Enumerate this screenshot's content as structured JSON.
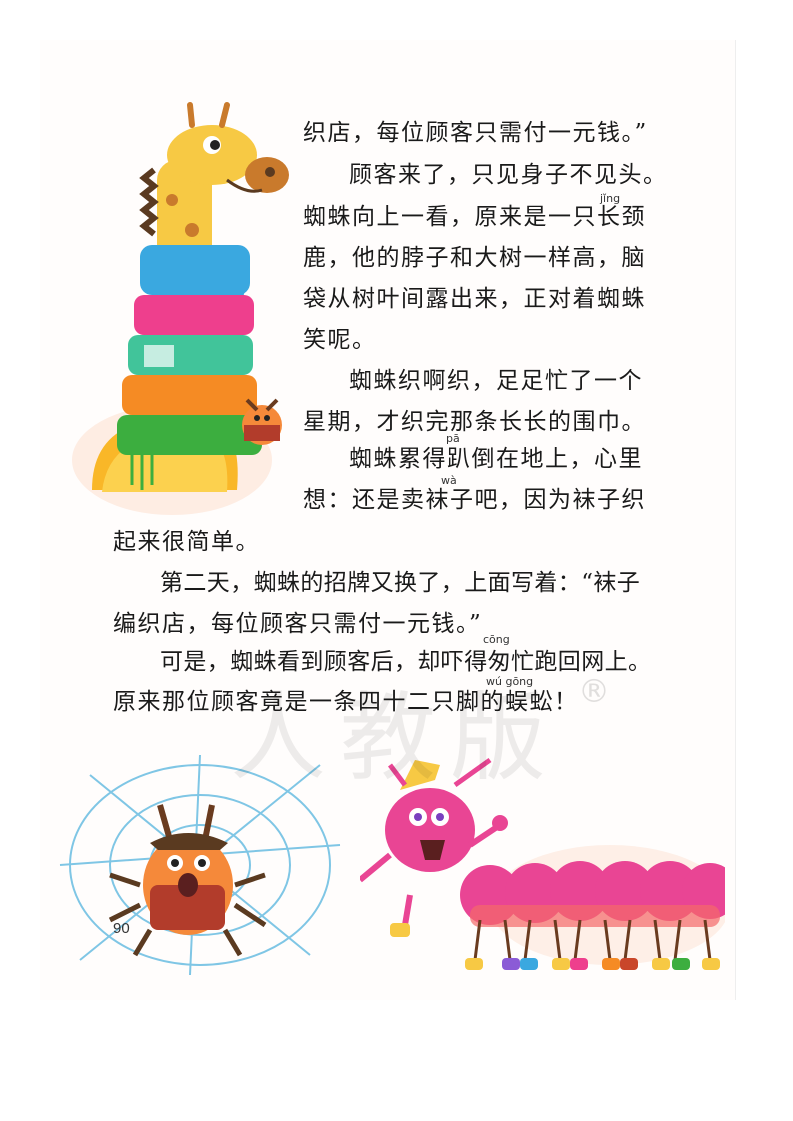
{
  "lines": [
    "织店，每位顾客只需付一元钱。”",
    "顾客来了，只见身子不见头。",
    "蜘蛛向上一看，原来是一只长颈",
    "鹿，他的脖子和大树一样高，脑",
    "袋从树叶间露出来，正对着蜘蛛",
    "笑呢。",
    "蜘蛛织啊织，足足忙了一个",
    "星期，才织完那条长长的围巾。",
    "蜘蛛累得趴倒在地上，心里",
    "想：还是卖袜子吧，因为袜子织",
    "起来很简单。",
    "第二天，蜘蛛的招牌又换了，上面写着：“袜子",
    "编织店，每位顾客只需付一元钱。”",
    "可是，蜘蛛看到顾客后，却吓得匆忙跑回网上。",
    "原来那位顾客竟是一条四十二只脚的蜈蚣！"
  ],
  "pinyin": {
    "jing": "jǐng",
    "pa": "pā",
    "wa": "wà",
    "cong": "cōng",
    "wugong": "wú gōng"
  },
  "page_number": "90",
  "watermark": "人教版",
  "registered_mark": "®"
}
